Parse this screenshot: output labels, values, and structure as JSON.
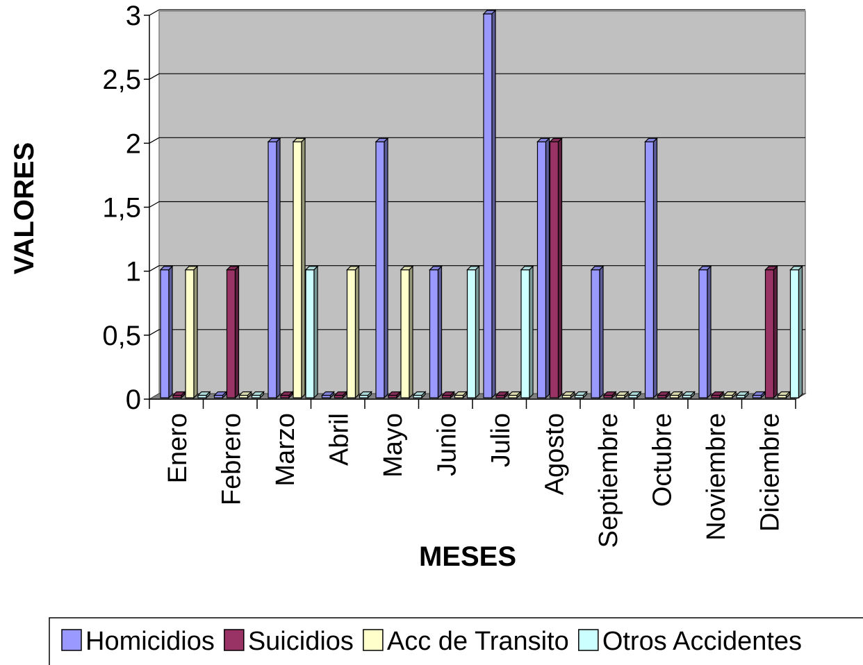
{
  "chart_data": {
    "type": "bar",
    "xlabel": "MESES",
    "ylabel": "VALORES",
    "ylim": [
      0,
      3
    ],
    "yticks": [
      "0",
      "0,5",
      "1",
      "1,5",
      "2",
      "2,5",
      "3"
    ],
    "categories": [
      "Enero",
      "Febrero",
      "Marzo",
      "Abril",
      "Mayo",
      "Junio",
      "Julio",
      "Agosto",
      "Septiembre",
      "Octubre",
      "Noviembre",
      "Diciembre"
    ],
    "series": [
      {
        "name": "Homicidios",
        "color": "#9999ff",
        "values": [
          1,
          0,
          2,
          0,
          2,
          1,
          3,
          2,
          1,
          2,
          1,
          0
        ]
      },
      {
        "name": "Suicidios",
        "color": "#993366",
        "values": [
          0,
          1,
          0,
          0,
          0,
          0,
          0,
          2,
          0,
          0,
          0,
          1
        ]
      },
      {
        "name": "Acc de Transito",
        "color": "#ffffcc",
        "values": [
          1,
          0,
          2,
          1,
          1,
          0,
          0,
          0,
          0,
          0,
          0,
          0
        ]
      },
      {
        "name": "Otros Accidentes",
        "color": "#ccffff",
        "values": [
          0,
          0,
          1,
          0,
          0,
          1,
          1,
          0,
          0,
          0,
          0,
          1
        ]
      }
    ],
    "grid": true,
    "legend_position": "bottom",
    "plot_background": "#c0c0c0"
  }
}
